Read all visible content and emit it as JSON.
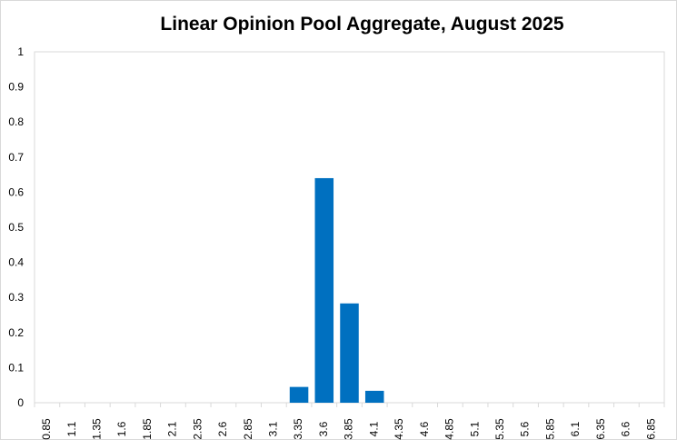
{
  "chart_data": {
    "type": "bar",
    "title": "Linear Opinion Pool Aggregate, August 2025",
    "xlabel": "",
    "ylabel": "",
    "categories": [
      "0.85",
      "1.1",
      "1.35",
      "1.6",
      "1.85",
      "2.1",
      "2.35",
      "2.6",
      "2.85",
      "3.1",
      "3.35",
      "3.6",
      "3.85",
      "4.1",
      "4.35",
      "4.6",
      "4.85",
      "5.1",
      "5.35",
      "5.6",
      "5.85",
      "6.1",
      "6.35",
      "6.6",
      "6.85"
    ],
    "values": [
      0,
      0,
      0,
      0,
      0,
      0,
      0,
      0,
      0,
      0,
      0.045,
      0.64,
      0.283,
      0.034,
      0,
      0,
      0,
      0,
      0,
      0,
      0,
      0,
      0,
      0,
      0
    ],
    "ylim": [
      0,
      1
    ],
    "yticks": [
      "0",
      "0.1",
      "0.2",
      "0.3",
      "0.4",
      "0.5",
      "0.6",
      "0.7",
      "0.8",
      "0.9",
      "1"
    ],
    "grid": false,
    "legend": "none",
    "bar_color": "#0070C0",
    "axis_color": "#d9d9d9"
  }
}
